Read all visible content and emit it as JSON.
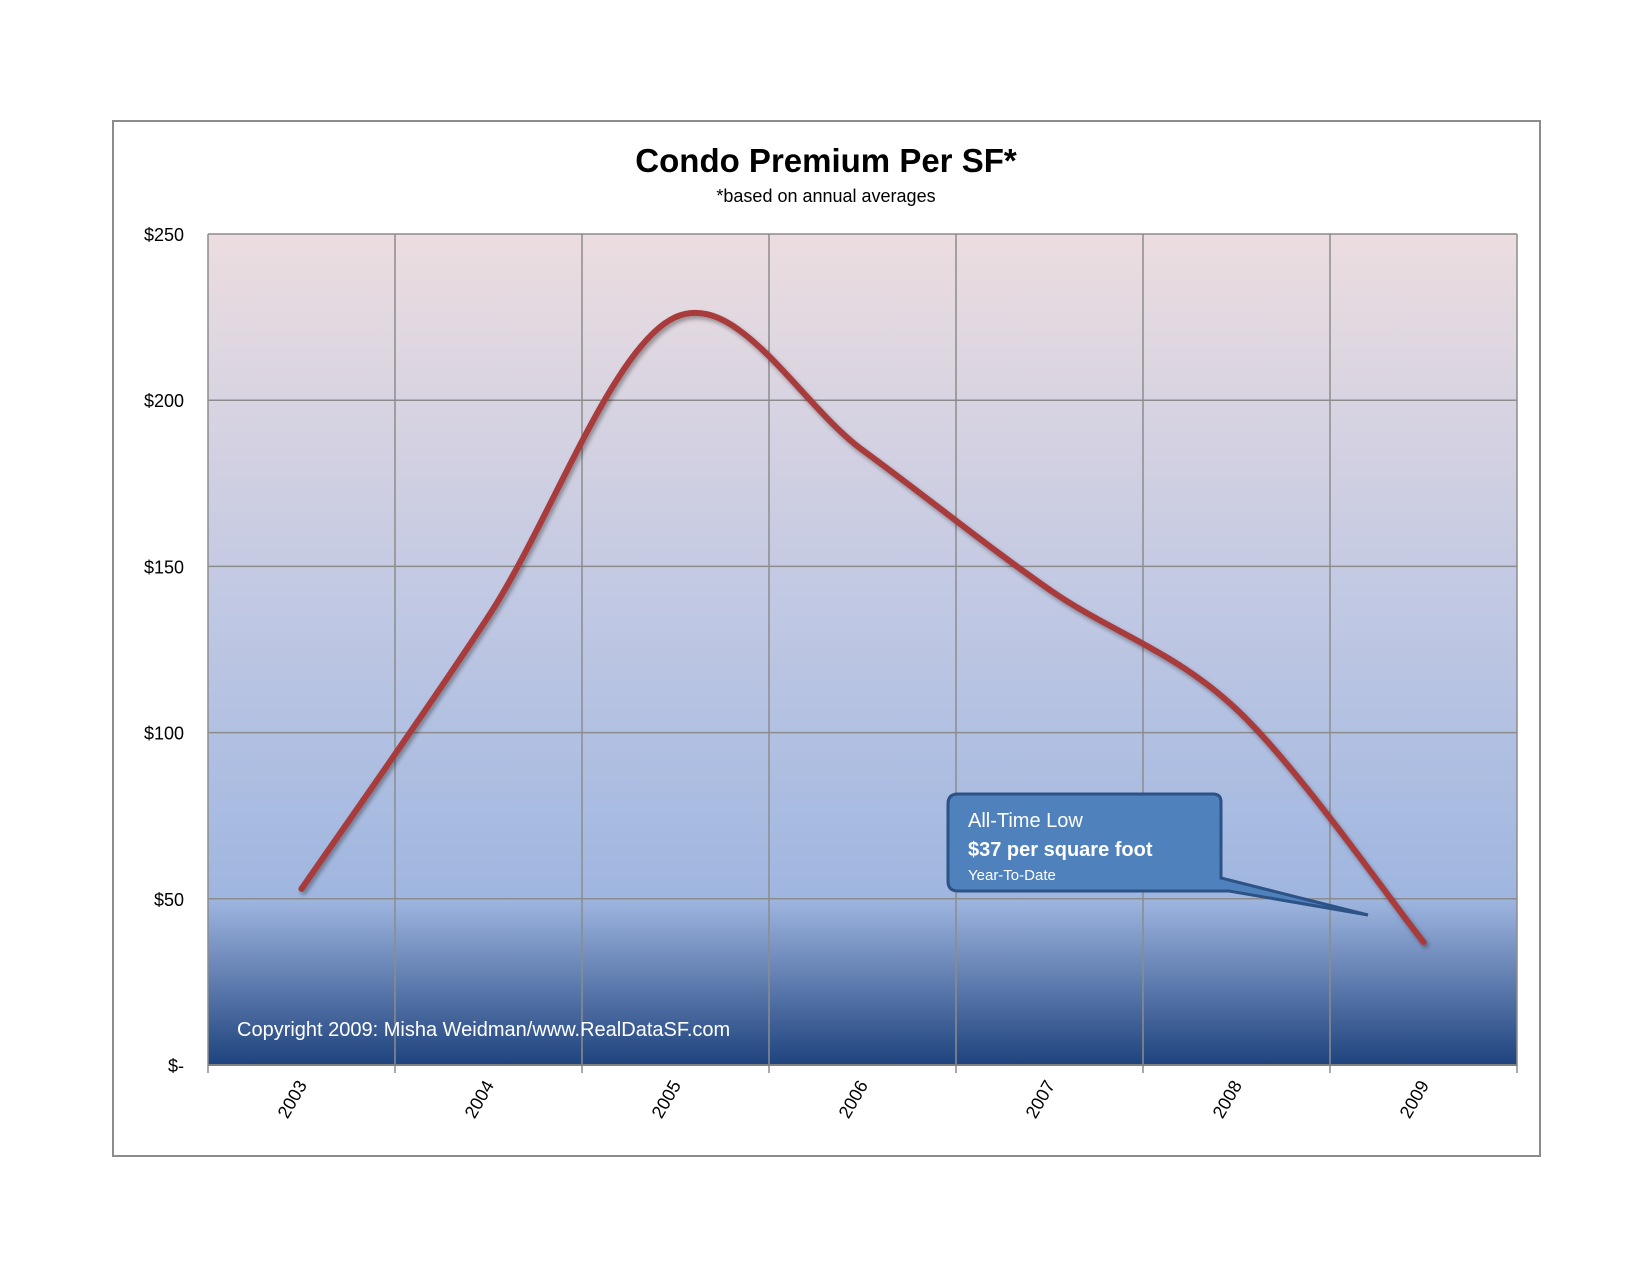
{
  "chart_data": {
    "type": "line",
    "title": "Condo Premium Per SF*",
    "subtitle": "*based on annual averages",
    "x": [
      "2003",
      "2004",
      "2005",
      "2006",
      "2007",
      "2008",
      "2009"
    ],
    "series": [
      {
        "values": [
          53,
          135,
          225,
          185,
          143,
          107,
          37
        ]
      }
    ],
    "y_ticks": [
      0,
      50,
      100,
      150,
      200,
      250
    ],
    "y_tick_labels": [
      "$-",
      "$50",
      "$100",
      "$150",
      "$200",
      "$250"
    ],
    "ylim": [
      0,
      250
    ],
    "grid": true,
    "line_smooth": true,
    "copyright": "Copyright 2009: Misha Weidman/www.RealDataSF.com",
    "callout": {
      "line1": "All-Time Low",
      "line2": "$37 per square foot",
      "line3": "Year-To-Date"
    },
    "colors": {
      "line": "#a83a3a",
      "plot_top": "#ecdde0",
      "plot_mid": "#9fb6e0",
      "plot_bottom": "#1f437e",
      "callout_fill": "#4f81bd",
      "callout_stroke": "#2c5286",
      "grid": "#8c8c8c",
      "frame": "#8c8c8c"
    }
  }
}
